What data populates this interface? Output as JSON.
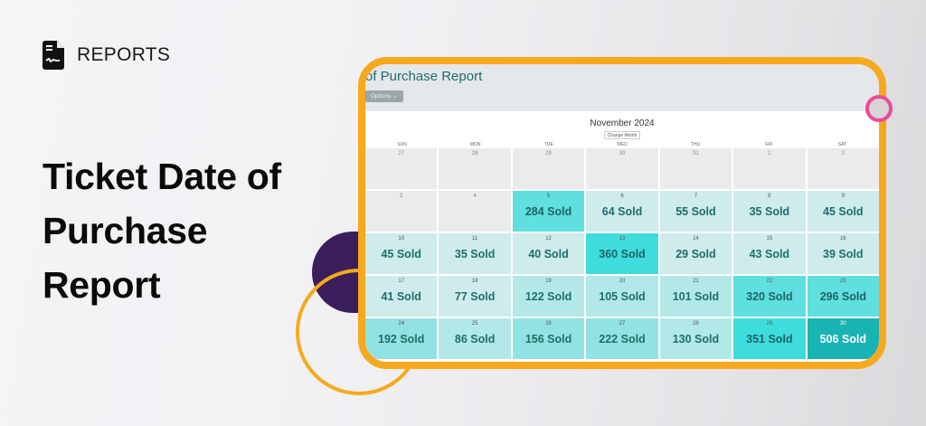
{
  "brand": {
    "icon": "report-document-icon",
    "label": "REPORTS"
  },
  "headline": {
    "lines": [
      "Ticket Date of",
      "Purchase",
      "Report"
    ]
  },
  "colors": {
    "accent_orange": "#f7a91d",
    "accent_pink": "#ee4a98",
    "accent_purple": "#3a1f5c",
    "teal_text": "#1f6e6b"
  },
  "app": {
    "title": "of Purchase Report",
    "options_label": "Options ⌄",
    "calendar": {
      "month_label": "November 2024",
      "change_month_label": "Change Month",
      "weekdays": [
        "SUN",
        "MON",
        "TUE",
        "WED",
        "THU",
        "FRI",
        "SAT"
      ],
      "weeks": [
        [
          {
            "date": "27",
            "sold": "",
            "level": "out"
          },
          {
            "date": "28",
            "sold": "",
            "level": "out"
          },
          {
            "date": "29",
            "sold": "",
            "level": "out"
          },
          {
            "date": "30",
            "sold": "",
            "level": "out"
          },
          {
            "date": "31",
            "sold": "",
            "level": "out"
          },
          {
            "date": "1",
            "sold": "",
            "level": "out"
          },
          {
            "date": "2",
            "sold": "",
            "level": "out"
          }
        ],
        [
          {
            "date": "3",
            "sold": "",
            "level": "out"
          },
          {
            "date": "4",
            "sold": "",
            "level": "out"
          },
          {
            "date": "5",
            "sold": "284 Sold",
            "level": "l4"
          },
          {
            "date": "6",
            "sold": "64 Sold",
            "level": "l1"
          },
          {
            "date": "7",
            "sold": "55 Sold",
            "level": "l1"
          },
          {
            "date": "8",
            "sold": "35 Sold",
            "level": "l1"
          },
          {
            "date": "9",
            "sold": "45 Sold",
            "level": "l1"
          }
        ],
        [
          {
            "date": "10",
            "sold": "45 Sold",
            "level": "l1"
          },
          {
            "date": "11",
            "sold": "35 Sold",
            "level": "l1"
          },
          {
            "date": "12",
            "sold": "40 Sold",
            "level": "l1"
          },
          {
            "date": "13",
            "sold": "360 Sold",
            "level": "l5"
          },
          {
            "date": "14",
            "sold": "29 Sold",
            "level": "l1"
          },
          {
            "date": "15",
            "sold": "43 Sold",
            "level": "l1"
          },
          {
            "date": "16",
            "sold": "39 Sold",
            "level": "l1"
          }
        ],
        [
          {
            "date": "17",
            "sold": "41 Sold",
            "level": "l1"
          },
          {
            "date": "18",
            "sold": "77 Sold",
            "level": "l1"
          },
          {
            "date": "19",
            "sold": "122 Sold",
            "level": "l2"
          },
          {
            "date": "20",
            "sold": "105 Sold",
            "level": "l2"
          },
          {
            "date": "21",
            "sold": "101 Sold",
            "level": "l2"
          },
          {
            "date": "22",
            "sold": "320 Sold",
            "level": "l4"
          },
          {
            "date": "23",
            "sold": "296 Sold",
            "level": "l4"
          }
        ],
        [
          {
            "date": "24",
            "sold": "192 Sold",
            "level": "l3"
          },
          {
            "date": "25",
            "sold": "86 Sold",
            "level": "l2"
          },
          {
            "date": "26",
            "sold": "156 Sold",
            "level": "l3"
          },
          {
            "date": "27",
            "sold": "222 Sold",
            "level": "l3"
          },
          {
            "date": "28",
            "sold": "130 Sold",
            "level": "l2"
          },
          {
            "date": "29",
            "sold": "351 Sold",
            "level": "l5"
          },
          {
            "date": "30",
            "sold": "506 Sold",
            "level": "l6"
          }
        ]
      ]
    }
  }
}
